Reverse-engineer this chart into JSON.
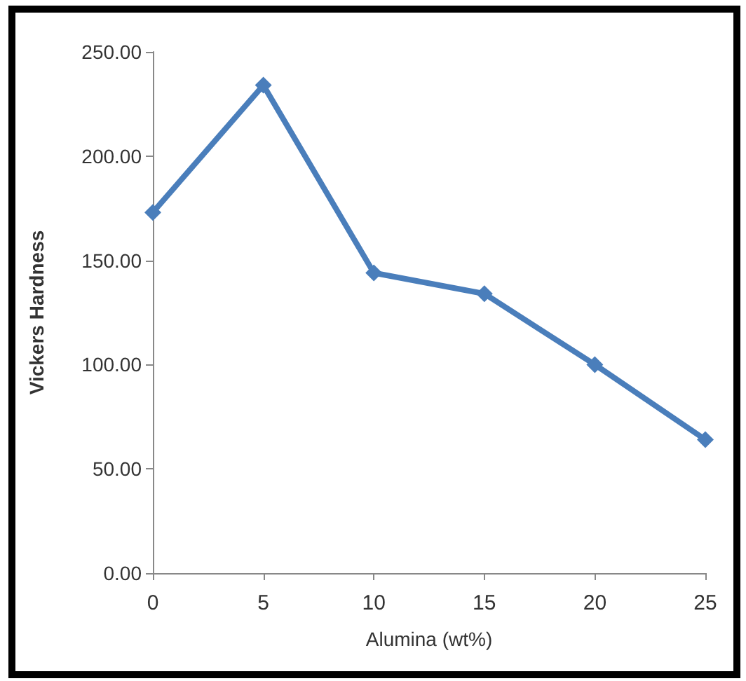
{
  "chart_data": {
    "type": "line",
    "xlabel": "Alumina (wt%)",
    "ylabel": "Vickers Hardness",
    "x": [
      0,
      5,
      10,
      15,
      20,
      25
    ],
    "series": [
      {
        "color": "#4a7ebb",
        "values": [
          173,
          234,
          144,
          134,
          100,
          64
        ]
      }
    ],
    "xlim": [
      0,
      25
    ],
    "xticks": [
      0,
      5,
      10,
      15,
      20,
      25
    ],
    "ylim": [
      0,
      250
    ],
    "yticks": [
      {
        "value": 0,
        "label": "0.00"
      },
      {
        "value": 50,
        "label": "50.00"
      },
      {
        "value": 100,
        "label": "100.00"
      },
      {
        "value": 150,
        "label": "150.00"
      },
      {
        "value": 200,
        "label": "200.00"
      },
      {
        "value": 250,
        "label": "250.00"
      }
    ],
    "grid": false,
    "marker": "diamond",
    "line_style": "solid"
  }
}
